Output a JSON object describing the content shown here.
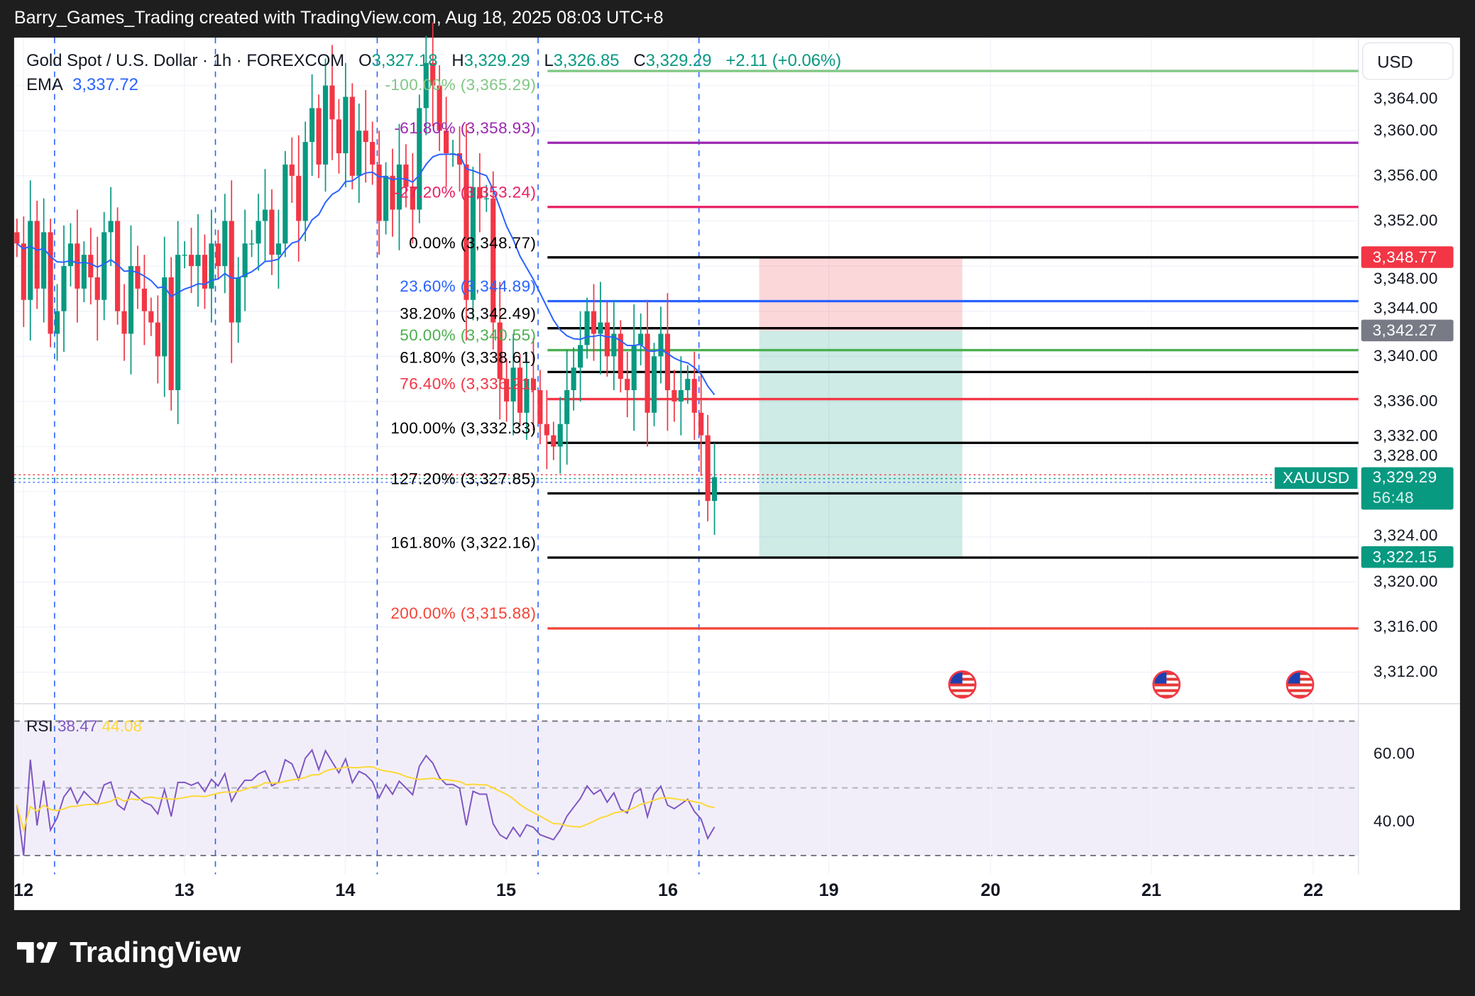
{
  "header": {
    "caption": "Barry_Games_Trading created with TradingView.com, Aug 18, 2025 08:03 UTC+8"
  },
  "legend": {
    "symbol": "Gold Spot / U.S. Dollar · 1h · FOREXCOM",
    "o_label": "O",
    "o": "3,327.18",
    "h_label": "H",
    "h": "3,329.29",
    "l_label": "L",
    "l": "3,326.85",
    "c_label": "C",
    "c": "3,329.29",
    "change": "+2.11 (+0.06%)",
    "ema_label": "EMA",
    "ema": "3,337.72"
  },
  "currency_button": "USD",
  "price_axis": [
    "3,364.00",
    "3,360.00",
    "3,356.00",
    "3,352.00",
    "3,348.00",
    "3,344.00",
    "3,340.00",
    "3,336.00",
    "3,332.00",
    "3,328.00",
    "3,324.00",
    "3,320.00",
    "3,316.00",
    "3,312.00"
  ],
  "price_axis_values": [
    3364,
    3360,
    3356,
    3352,
    3348,
    3344,
    3340,
    3336,
    3332,
    3328,
    3324,
    3320,
    3316,
    3312
  ],
  "price_tags": {
    "stop": {
      "value": 3348.77,
      "text": "3,348.77",
      "color": "#f23645"
    },
    "entry": {
      "value": 3342.27,
      "text": "3,342.27",
      "color": "#787b86"
    },
    "last": {
      "value": 3329.29,
      "text": "3,329.29",
      "countdown": "56:48",
      "symbol": "XAUUSD",
      "color": "#089981"
    },
    "target": {
      "value": 3322.15,
      "text": "3,322.15",
      "color": "#089981"
    }
  },
  "fib_levels": [
    {
      "label": "-100.00% (3,365.29)",
      "value": 3365.29,
      "color": "#81c784"
    },
    {
      "label": "-61.80% (3,358.93)",
      "value": 3358.93,
      "color": "#9c27b0"
    },
    {
      "label": "-27.20% (3,353.24)",
      "value": 3353.24,
      "color": "#e91e63"
    },
    {
      "label": "0.00% (3,348.77)",
      "value": 3348.77,
      "color": "#000000"
    },
    {
      "label": "23.60% (3,344.89)",
      "value": 3344.89,
      "color": "#2962ff"
    },
    {
      "label": "38.20% (3,342.49)",
      "value": 3342.49,
      "color": "#000000"
    },
    {
      "label": "50.00% (3,340.55)",
      "value": 3340.55,
      "color": "#4caf50"
    },
    {
      "label": "61.80% (3,338.61)",
      "value": 3338.61,
      "color": "#000000"
    },
    {
      "label": "76.40% (3,336.21)",
      "value": 3336.21,
      "color": "#f23645"
    },
    {
      "label": "100.00% (3,332.33)",
      "value": 3332.33,
      "color": "#000000"
    },
    {
      "label": "127.20% (3,327.85)",
      "value": 3327.85,
      "color": "#000000"
    },
    {
      "label": "161.80% (3,322.16)",
      "value": 3322.16,
      "color": "#000000"
    },
    {
      "label": "200.00% (3,315.88)",
      "value": 3315.88,
      "color": "#f44336"
    }
  ],
  "position": {
    "stop": 3348.77,
    "entry": 3342.27,
    "target": 3322.15
  },
  "closes": [
    3350,
    3345,
    3352,
    3346,
    3351,
    3342,
    3344,
    3348,
    3350,
    3346,
    3349,
    3347,
    3345,
    3351,
    3352,
    3344,
    3342,
    3348,
    3346,
    3344,
    3343,
    3340,
    3347,
    3337,
    3349,
    3349,
    3348,
    3349,
    3346,
    3350,
    3348,
    3352,
    3343,
    3347,
    3350,
    3350,
    3352,
    3353,
    3349,
    3350,
    3357,
    3356,
    3352,
    3359,
    3362,
    3357,
    3364,
    3361,
    3358,
    3363,
    3356,
    3360,
    3359,
    3357,
    3352,
    3356,
    3353,
    3357,
    3355,
    3353,
    3362,
    3366,
    3364,
    3360,
    3358,
    3358,
    3357,
    3345,
    3355,
    3354,
    3354,
    3343,
    3338,
    3336,
    3339,
    3335,
    3338,
    3337,
    3334,
    3333,
    3332,
    3334,
    3337,
    3339,
    3341,
    3344,
    3342,
    3343,
    3340,
    3342,
    3338,
    3337,
    3341,
    3342,
    3335,
    3340,
    3342,
    3337,
    3336,
    3337,
    3338,
    3335,
    3333,
    3327.18,
    3329.29
  ],
  "rsi": {
    "label": "RSI",
    "value": "38.47",
    "ma": "44.08",
    "levels": [
      70,
      50,
      30
    ],
    "axis": [
      "60.00",
      "40.00"
    ],
    "axis_values": [
      60,
      40
    ]
  },
  "time_axis": [
    "12",
    "13",
    "14",
    "15",
    "16",
    "19",
    "20",
    "21",
    "22"
  ],
  "colors": {
    "up": "#089981",
    "down": "#f23645",
    "ema": "#2962ff",
    "rsi": "#7e57c2",
    "rsi_ma": "#fdd835"
  },
  "branding": "TradingView"
}
